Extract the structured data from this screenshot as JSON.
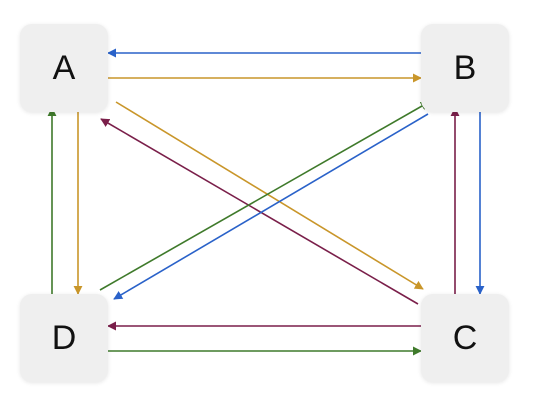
{
  "colors": {
    "blue": "#2a62c9",
    "gold": "#c9962a",
    "green": "#3f7a2b",
    "maroon": "#7a1f4a"
  },
  "nodes": {
    "A": {
      "label": "A"
    },
    "B": {
      "label": "B"
    },
    "C": {
      "label": "C"
    },
    "D": {
      "label": "D"
    }
  },
  "edges": [
    {
      "from": "B",
      "to": "A",
      "color": "blue"
    },
    {
      "from": "A",
      "to": "B",
      "color": "gold"
    },
    {
      "from": "A",
      "to": "D",
      "color": "gold"
    },
    {
      "from": "D",
      "to": "A",
      "color": "green"
    },
    {
      "from": "A",
      "to": "C",
      "color": "gold"
    },
    {
      "from": "C",
      "to": "A",
      "color": "maroon"
    },
    {
      "from": "D",
      "to": "B",
      "color": "green"
    },
    {
      "from": "B",
      "to": "D",
      "color": "blue"
    },
    {
      "from": "C",
      "to": "B",
      "color": "maroon"
    },
    {
      "from": "B",
      "to": "C",
      "color": "blue"
    },
    {
      "from": "C",
      "to": "D",
      "color": "maroon"
    },
    {
      "from": "D",
      "to": "C",
      "color": "green"
    }
  ]
}
